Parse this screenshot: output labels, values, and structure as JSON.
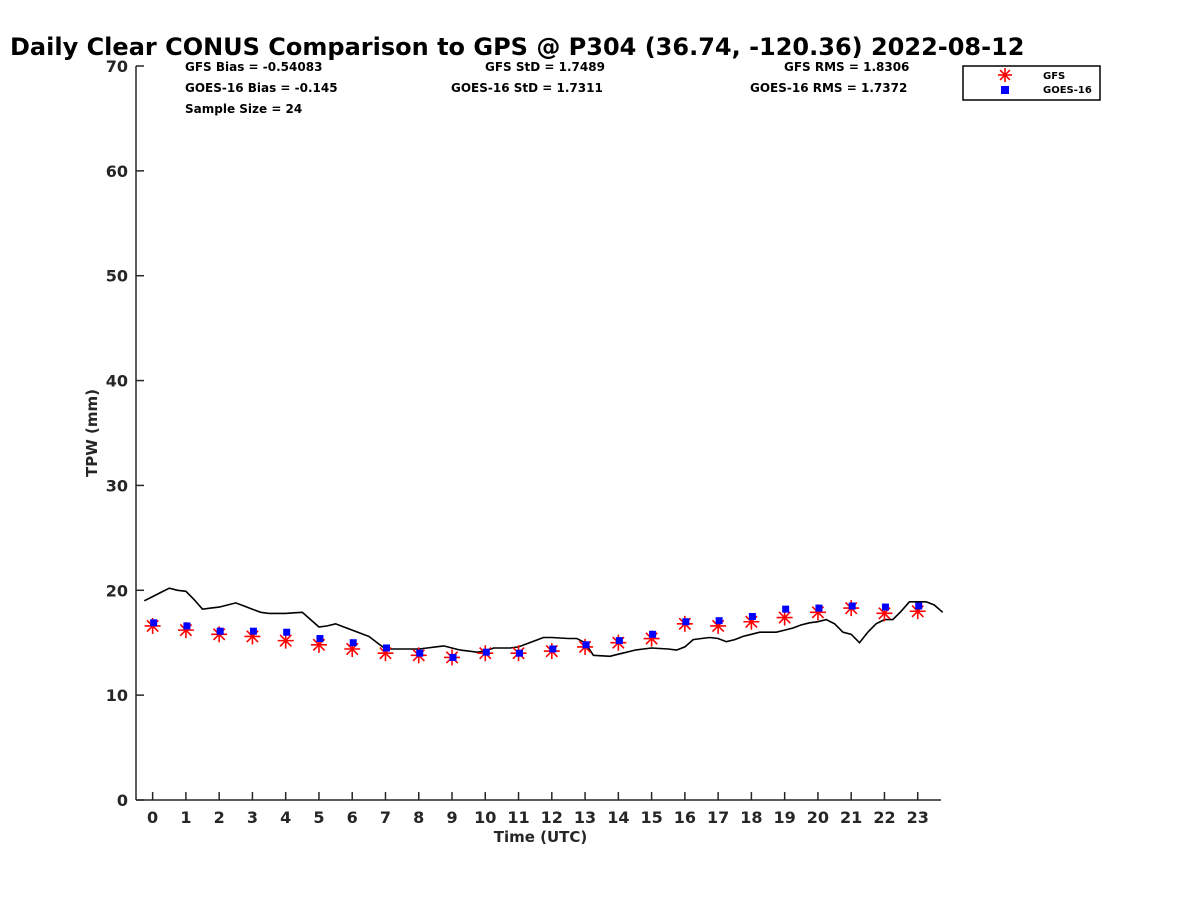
{
  "chart_data": {
    "type": "line",
    "title": "Daily Clear CONUS Comparison to GPS @ P304 (36.74, -120.36) 2022-08-12",
    "xlabel": "Time (UTC)",
    "ylabel": "TPW (mm)",
    "xlim": [
      -0.5,
      23.7
    ],
    "ylim": [
      0,
      70
    ],
    "x_ticks": [
      0,
      1,
      2,
      3,
      4,
      5,
      6,
      7,
      8,
      9,
      10,
      11,
      12,
      13,
      14,
      15,
      16,
      17,
      18,
      19,
      20,
      21,
      22,
      23
    ],
    "y_ticks": [
      0,
      10,
      20,
      30,
      40,
      50,
      60,
      70
    ],
    "grid": false,
    "legend_position": "top-right",
    "stats": {
      "gfs_bias": "GFS Bias = -0.54083",
      "goes_bias": "GOES-16 Bias = -0.145",
      "sample_size": "Sample Size = 24",
      "gfs_std": "GFS StD = 1.7489",
      "goes_std": "GOES-16 StD = 1.7311",
      "gfs_rms": "GFS RMS = 1.8306",
      "goes_rms": "GOES-16 RMS = 1.7372"
    },
    "series": [
      {
        "name": "",
        "kind": "line",
        "color": "#000000",
        "x": [
          -0.25,
          0,
          0.25,
          0.5,
          0.75,
          1,
          1.25,
          1.5,
          1.75,
          2,
          2.25,
          2.5,
          2.75,
          3,
          3.25,
          3.5,
          3.75,
          4,
          4.25,
          4.5,
          4.75,
          5,
          5.25,
          5.5,
          5.75,
          6,
          6.25,
          6.5,
          6.75,
          7,
          7.25,
          7.5,
          7.75,
          8,
          8.25,
          8.5,
          8.75,
          9,
          9.25,
          9.5,
          9.75,
          10,
          10.25,
          10.5,
          10.75,
          11,
          11.25,
          11.5,
          11.75,
          12,
          12.25,
          12.5,
          12.75,
          13,
          13.25,
          13.5,
          13.75,
          14,
          14.25,
          14.5,
          14.75,
          15,
          15.25,
          15.5,
          15.75,
          16,
          16.25,
          16.5,
          16.75,
          17,
          17.25,
          17.5,
          17.75,
          18,
          18.25,
          18.5,
          18.75,
          19,
          19.25,
          19.5,
          19.75,
          20,
          20.25,
          20.5,
          20.75,
          21,
          21.25,
          21.5,
          21.75,
          22,
          22.25,
          22.5,
          22.75,
          23,
          23.25,
          23.5,
          23.75
        ],
        "y": [
          19.0,
          19.4,
          19.8,
          20.2,
          20.0,
          19.9,
          19.1,
          18.2,
          18.3,
          18.4,
          18.6,
          18.8,
          18.5,
          18.2,
          17.9,
          17.8,
          17.8,
          17.8,
          17.85,
          17.9,
          17.2,
          16.5,
          16.6,
          16.8,
          16.5,
          16.2,
          15.9,
          15.6,
          15.0,
          14.4,
          14.4,
          14.4,
          14.4,
          14.4,
          14.5,
          14.6,
          14.7,
          14.5,
          14.3,
          14.2,
          14.1,
          14.2,
          14.5,
          14.5,
          14.5,
          14.6,
          14.9,
          15.2,
          15.5,
          15.5,
          15.45,
          15.4,
          15.4,
          15.0,
          13.8,
          13.75,
          13.7,
          13.9,
          14.1,
          14.3,
          14.4,
          14.5,
          14.45,
          14.4,
          14.3,
          14.6,
          15.3,
          15.4,
          15.5,
          15.4,
          15.1,
          15.3,
          15.6,
          15.8,
          16.0,
          16.0,
          16.0,
          16.2,
          16.4,
          16.7,
          16.9,
          17.0,
          17.2,
          16.8,
          16.0,
          15.8,
          15.0,
          16.0,
          16.8,
          17.2,
          17.2,
          18.0,
          18.9,
          18.9,
          18.9,
          18.6,
          17.9
        ]
      },
      {
        "name": "GFS",
        "kind": "marker",
        "marker": "asterisk",
        "color": "#ff0000",
        "x": [
          0,
          1,
          2,
          3,
          4,
          5,
          6,
          7,
          8,
          9,
          10,
          11,
          12,
          13,
          14,
          15,
          16,
          17,
          18,
          19,
          20,
          21,
          22,
          23
        ],
        "y": [
          16.6,
          16.2,
          15.8,
          15.6,
          15.2,
          14.8,
          14.4,
          14.0,
          13.8,
          13.6,
          14.0,
          14.0,
          14.2,
          14.6,
          15.0,
          15.4,
          16.8,
          16.6,
          17.0,
          17.4,
          17.9,
          18.3,
          17.8,
          18.0
        ]
      },
      {
        "name": "GOES-16",
        "kind": "marker",
        "marker": "square",
        "color": "#0000ff",
        "x": [
          0,
          1,
          2,
          3,
          4,
          5,
          6,
          7,
          8,
          9,
          10,
          11,
          12,
          13,
          14,
          15,
          16,
          17,
          18,
          19,
          20,
          21,
          22,
          23
        ],
        "y": [
          16.9,
          16.6,
          16.1,
          16.1,
          16.0,
          15.4,
          15.0,
          14.5,
          14.0,
          13.6,
          14.1,
          14.0,
          14.4,
          14.8,
          15.2,
          15.8,
          17.0,
          17.1,
          17.5,
          18.2,
          18.3,
          18.5,
          18.4,
          18.5
        ]
      }
    ]
  }
}
